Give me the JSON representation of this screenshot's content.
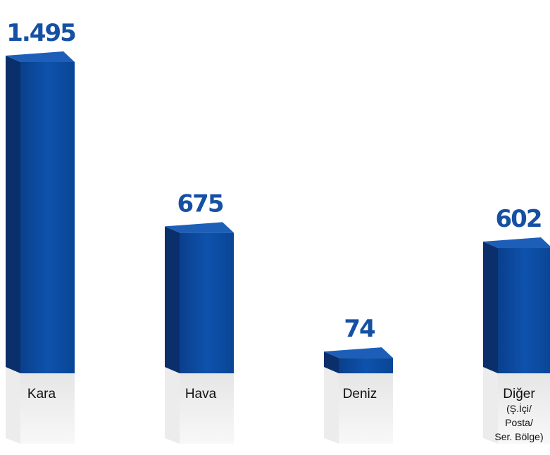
{
  "chart_data": {
    "type": "bar3d",
    "categories": [
      "Kara",
      "Hava",
      "Deniz",
      "Diğer"
    ],
    "category_notes": {
      "3": [
        "(Ş.İçi/",
        "Posta/",
        "Ser. Bölge)"
      ]
    },
    "values": [
      1495,
      675,
      74,
      602
    ],
    "value_labels": [
      "1.495",
      "675",
      "74",
      "602"
    ],
    "color": "#0b4a9f"
  }
}
